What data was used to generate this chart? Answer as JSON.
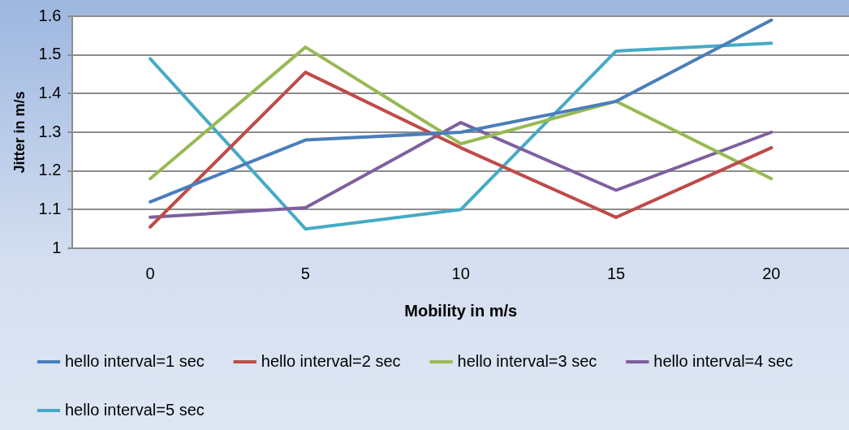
{
  "chart_data": {
    "type": "line",
    "xlabel": "Mobility in m/s",
    "ylabel": "Jitter in m/s",
    "categories": [
      "0",
      "5",
      "10",
      "15",
      "20"
    ],
    "series": [
      {
        "name": "hello interval=1 sec",
        "color": "#4a7ebb",
        "values": [
          1.12,
          1.28,
          1.3,
          1.38,
          1.59
        ]
      },
      {
        "name": "hello interval=2 sec",
        "color": "#be4b48",
        "values": [
          1.055,
          1.455,
          1.26,
          1.08,
          1.26
        ]
      },
      {
        "name": "hello interval=3 sec",
        "color": "#98b954",
        "values": [
          1.18,
          1.52,
          1.27,
          1.38,
          1.18
        ]
      },
      {
        "name": "hello interval=4 sec",
        "color": "#7d60a0",
        "values": [
          1.08,
          1.105,
          1.325,
          1.15,
          1.3
        ]
      },
      {
        "name": "hello interval=5 sec",
        "color": "#46aac5",
        "values": [
          1.49,
          1.05,
          1.1,
          1.51,
          1.53
        ]
      }
    ],
    "ylim": [
      1,
      1.6
    ],
    "yticks": [
      1,
      1.1,
      1.2,
      1.3,
      1.4,
      1.5,
      1.6
    ],
    "grid": "y",
    "legend": "bottom",
    "marker": "none",
    "line_style": "solid"
  }
}
